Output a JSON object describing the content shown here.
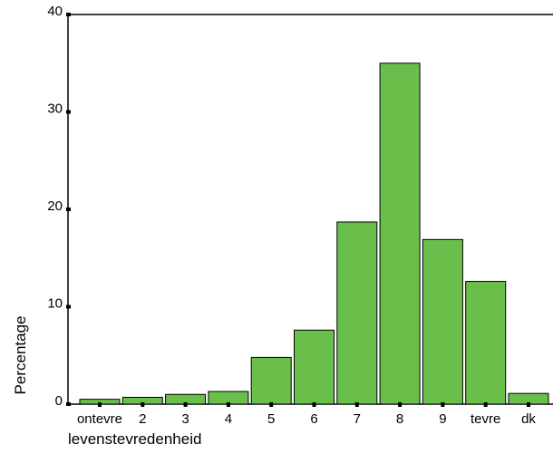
{
  "chart_data": {
    "type": "bar",
    "title": "",
    "xlabel": "levenstevredenheid",
    "ylabel": "Percentage",
    "ylim": [
      0,
      40
    ],
    "yticks": [
      0,
      10,
      20,
      30,
      40
    ],
    "categories": [
      "ontevre",
      "2",
      "3",
      "4",
      "5",
      "6",
      "7",
      "8",
      "9",
      "tevre",
      "dk"
    ],
    "values": [
      0.5,
      0.7,
      1.0,
      1.3,
      4.8,
      7.6,
      18.7,
      35.0,
      16.9,
      12.6,
      1.1
    ],
    "grid": false,
    "legend": "none",
    "colors": {
      "bar_fill": "#6abf4b",
      "bar_stroke": "#000000",
      "axis": "#000000"
    }
  }
}
